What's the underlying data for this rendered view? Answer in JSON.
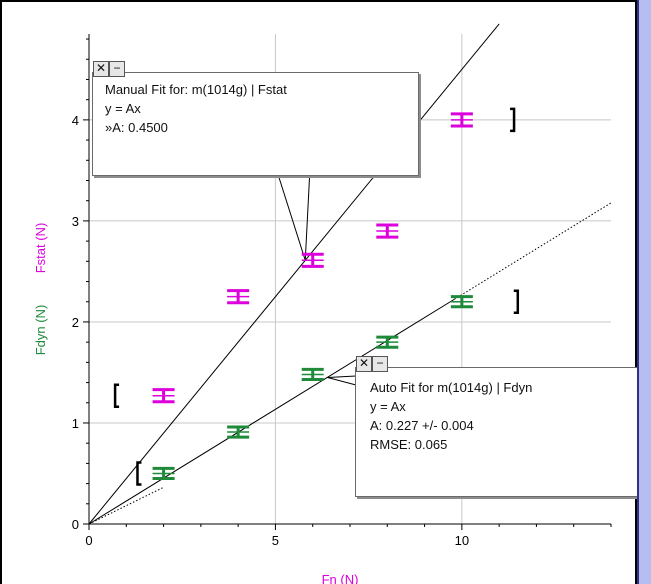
{
  "colors": {
    "fstat": "#dd00dd",
    "fdyn": "#1e8a3a",
    "line": "#000000",
    "grid": "#c8c8c8"
  },
  "chart_data": {
    "type": "scatter",
    "xlabel": "Fn (N)",
    "ylabel_fdyn": "Fdyn (N)",
    "ylabel_fstat": "Fstat (N)",
    "xlim": [
      0,
      14.0
    ],
    "ylim": [
      0,
      4.85
    ],
    "xticks": [
      0,
      5,
      10
    ],
    "yticks": [
      0,
      1,
      2,
      3,
      4
    ],
    "grid": true,
    "series": [
      {
        "name": "Fstat",
        "color": "#dd00dd",
        "x": [
          2,
          4,
          6,
          8,
          10
        ],
        "y": [
          1.27,
          2.25,
          2.61,
          2.9,
          4.0
        ],
        "err": [
          0.06,
          0.06,
          0.06,
          0.06,
          0.06
        ]
      },
      {
        "name": "Fdyn",
        "color": "#1e8a3a",
        "x": [
          2,
          4,
          6,
          8,
          10
        ],
        "y": [
          0.5,
          0.91,
          1.48,
          1.8,
          2.2
        ],
        "err": [
          0.05,
          0.05,
          0.05,
          0.05,
          0.05
        ]
      }
    ],
    "fits": [
      {
        "kind": "manual",
        "slope": 0.45,
        "x_range": [
          0,
          11.0
        ],
        "dashed": false
      },
      {
        "kind": "auto",
        "slope": 0.227,
        "x_range": [
          0,
          14.0
        ],
        "dashed": true,
        "solid_until": 9.8
      }
    ],
    "brackets": [
      {
        "series": "Fstat",
        "side": "left",
        "x": 0.7,
        "y": 1.27
      },
      {
        "series": "Fstat",
        "side": "right",
        "x": 11.4,
        "y": 4.0
      },
      {
        "series": "Fdyn",
        "side": "left",
        "x": 1.3,
        "y": 0.5
      },
      {
        "series": "Fdyn",
        "side": "right",
        "x": 11.5,
        "y": 2.2
      }
    ]
  },
  "manual_fit_box": {
    "close_symbol": "✕",
    "minimize_symbol": "−",
    "title": "Manual Fit for:  m(1014g) | Fstat",
    "equation": "y = Ax",
    "param": "»A: 0.4500",
    "pointer_target": {
      "x": 5.8,
      "y": 2.61
    }
  },
  "auto_fit_box": {
    "close_symbol": "✕",
    "minimize_symbol": "−",
    "title": "Auto Fit for  m(1014g) | Fdyn",
    "equation": "y = Ax",
    "param": "A: 0.227 +/- 0.004",
    "rmse": "RMSE: 0.065",
    "pointer_target": {
      "x": 6.4,
      "y": 1.45
    }
  }
}
